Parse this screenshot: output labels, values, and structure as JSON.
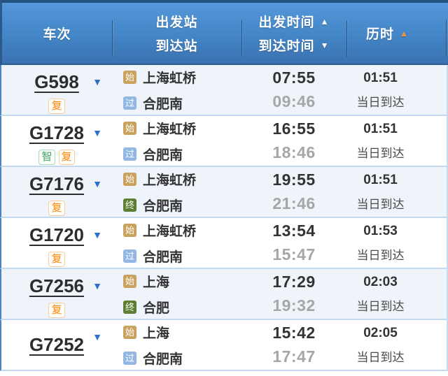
{
  "header": {
    "train_no_label": "车次",
    "depart_station_label": "出发站",
    "arrive_station_label": "到达站",
    "depart_time_label": "出发时间",
    "arrive_time_label": "到达时间",
    "duration_label": "历时",
    "sort_up_glyph": "▲",
    "sort_down_glyph": "▼"
  },
  "icons": {
    "dropdown_glyph": "▼"
  },
  "rows": [
    {
      "train_no": "G598",
      "tags": [
        "复"
      ],
      "from_type": "始",
      "from_station": "上海虹桥",
      "to_type": "过",
      "to_station": "合肥南",
      "depart_time": "07:55",
      "arrive_time": "09:46",
      "duration": "01:51",
      "arrival_note": "当日到达"
    },
    {
      "train_no": "G1728",
      "tags": [
        "智",
        "复"
      ],
      "from_type": "始",
      "from_station": "上海虹桥",
      "to_type": "过",
      "to_station": "合肥南",
      "depart_time": "16:55",
      "arrive_time": "18:46",
      "duration": "01:51",
      "arrival_note": "当日到达"
    },
    {
      "train_no": "G7176",
      "tags": [
        "复"
      ],
      "from_type": "始",
      "from_station": "上海虹桥",
      "to_type": "终",
      "to_station": "合肥南",
      "depart_time": "19:55",
      "arrive_time": "21:46",
      "duration": "01:51",
      "arrival_note": "当日到达"
    },
    {
      "train_no": "G1720",
      "tags": [
        "复"
      ],
      "from_type": "始",
      "from_station": "上海虹桥",
      "to_type": "过",
      "to_station": "合肥南",
      "depart_time": "13:54",
      "arrive_time": "15:47",
      "duration": "01:53",
      "arrival_note": "当日到达"
    },
    {
      "train_no": "G7256",
      "tags": [
        "复"
      ],
      "from_type": "始",
      "from_station": "上海",
      "to_type": "终",
      "to_station": "合肥",
      "depart_time": "17:29",
      "arrive_time": "19:32",
      "duration": "02:03",
      "arrival_note": "当日到达"
    },
    {
      "train_no": "G7252",
      "tags": [],
      "from_type": "始",
      "from_station": "上海",
      "to_type": "过",
      "to_station": "合肥南",
      "depart_time": "15:42",
      "arrive_time": "17:47",
      "duration": "02:05",
      "arrival_note": "当日到达"
    }
  ],
  "colors": {
    "header_gradient_top": "#5598DB",
    "header_gradient_bottom": "#3B72B1",
    "header_border": "#24527F",
    "header_text": "#FFFFFF",
    "sort_active_arrow": "#F5953B",
    "row_alt_bg": "#EFF4FB",
    "row_bg": "#FFFFFF",
    "row_separator": "#C2D9EF",
    "table_left_border": "#4C82C2",
    "train_number_text": "#2D2D2D",
    "dropdown_arrow": "#2D6FC9",
    "tag_fuxing": "#FF8400",
    "tag_smart": "#3FA266",
    "badge_start_bg": "#C9A25E",
    "badge_pass_bg": "#92B7E3",
    "badge_end_bg": "#5E7F33",
    "time_depart": "#333333",
    "time_arrive": "#A6A6A6",
    "note_text": "#4A4A4A"
  }
}
